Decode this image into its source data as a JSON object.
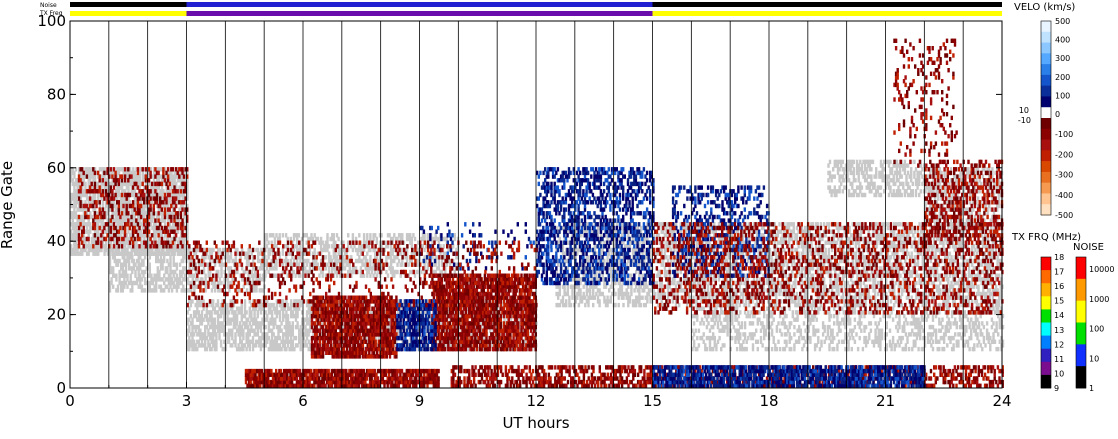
{
  "strips": {
    "noise_label": "Noise",
    "txfreq_label": "TX Freq"
  },
  "chart_data": {
    "type": "heatmap",
    "title": "",
    "xlabel": "UT hours",
    "ylabel": "Range Gate",
    "xlim": [
      0,
      24
    ],
    "ylim": [
      0,
      100
    ],
    "x_ticks": [
      "0",
      "3",
      "6",
      "9",
      "12",
      "15",
      "18",
      "21",
      "24"
    ],
    "y_ticks": [
      "0",
      "20",
      "40",
      "60",
      "80",
      "100"
    ],
    "hour_gridlines": [
      1,
      2,
      3,
      4,
      5,
      6,
      7,
      8,
      9,
      10,
      11,
      12,
      13,
      14,
      15,
      16,
      17,
      18,
      19,
      20,
      21,
      22,
      23
    ],
    "ground_scatter_color": "#c8c8c8",
    "noise_strip": {
      "segments": [
        {
          "from": 0,
          "to": 3,
          "color": "#000000"
        },
        {
          "from": 3,
          "to": 15,
          "color": "#2020d0"
        },
        {
          "from": 15,
          "to": 24,
          "color": "#000000"
        }
      ]
    },
    "txfreq_strip": {
      "segments": [
        {
          "from": 0,
          "to": 3,
          "color": "#ffff00"
        },
        {
          "from": 3,
          "to": 15,
          "color": "#6a0dad"
        },
        {
          "from": 15,
          "to": 24,
          "color": "#ffff00"
        }
      ]
    },
    "regions": [
      {
        "kind": "gs",
        "t": [
          0.0,
          3.0
        ],
        "g": [
          36,
          60
        ],
        "density": 0.75
      },
      {
        "kind": "gs",
        "t": [
          1.0,
          5.0
        ],
        "g": [
          26,
          38
        ],
        "density": 0.55
      },
      {
        "kind": "gs",
        "t": [
          3.0,
          12.0
        ],
        "g": [
          10,
          24
        ],
        "density": 0.6
      },
      {
        "kind": "gs",
        "t": [
          5.0,
          10.0
        ],
        "g": [
          30,
          42
        ],
        "density": 0.45
      },
      {
        "kind": "gs",
        "t": [
          12.5,
          24.0
        ],
        "g": [
          22,
          45
        ],
        "density": 0.5
      },
      {
        "kind": "gs",
        "t": [
          16.0,
          24.0
        ],
        "g": [
          10,
          22
        ],
        "density": 0.35
      },
      {
        "kind": "gs",
        "t": [
          19.5,
          22.0
        ],
        "g": [
          52,
          62
        ],
        "density": 0.5
      },
      {
        "kind": "gs",
        "t": [
          22.0,
          24.0
        ],
        "g": [
          44,
          60
        ],
        "density": 0.45
      },
      {
        "kind": "neg",
        "t": [
          0.2,
          3.0
        ],
        "g": [
          38,
          60
        ],
        "density": 0.3
      },
      {
        "kind": "neg",
        "t": [
          6.2,
          8.4
        ],
        "g": [
          8,
          25
        ],
        "density": 0.85
      },
      {
        "kind": "neg",
        "t": [
          9.3,
          12.0
        ],
        "g": [
          10,
          31
        ],
        "density": 0.8
      },
      {
        "kind": "pos",
        "t": [
          8.4,
          9.4
        ],
        "g": [
          10,
          24
        ],
        "density": 0.7
      },
      {
        "kind": "neg",
        "t": [
          4.5,
          9.5
        ],
        "g": [
          0,
          5
        ],
        "density": 0.85
      },
      {
        "kind": "neg",
        "t": [
          9.8,
          24.0
        ],
        "g": [
          0,
          6
        ],
        "density": 0.5
      },
      {
        "kind": "pos",
        "t": [
          15.0,
          22.0
        ],
        "g": [
          0,
          6
        ],
        "density": 0.75
      },
      {
        "kind": "pos",
        "t": [
          12.0,
          15.0
        ],
        "g": [
          28,
          60
        ],
        "density": 0.45
      },
      {
        "kind": "pos",
        "t": [
          15.5,
          18.0
        ],
        "g": [
          30,
          55
        ],
        "density": 0.3
      },
      {
        "kind": "neg",
        "t": [
          15.0,
          24.0
        ],
        "g": [
          20,
          45
        ],
        "density": 0.25
      },
      {
        "kind": "neg",
        "t": [
          22.0,
          24.0
        ],
        "g": [
          40,
          62
        ],
        "density": 0.35
      },
      {
        "kind": "neg",
        "t": [
          21.2,
          22.8
        ],
        "g": [
          60,
          95
        ],
        "density": 0.12
      },
      {
        "kind": "pos",
        "t": [
          9.0,
          12.5
        ],
        "g": [
          32,
          45
        ],
        "density": 0.12
      },
      {
        "kind": "neg",
        "t": [
          3.0,
          12.0
        ],
        "g": [
          22,
          40
        ],
        "density": 0.15
      }
    ],
    "velocity_colorbar": {
      "title": "VELO (km/s)",
      "labels": [
        "500",
        "400",
        "300",
        "200",
        "100",
        "0",
        "10",
        "-10",
        "-100",
        "-200",
        "-300",
        "-400",
        "-500"
      ],
      "colors_top_to_bottom": [
        "#e8f4ff",
        "#bfe2ff",
        "#8cc8ff",
        "#55a8ff",
        "#2a7fe8",
        "#1555cc",
        "#0a2f9a",
        "#00006e",
        "#ffffff",
        "#6e0000",
        "#8b0000",
        "#a81010",
        "#c02000",
        "#d84800",
        "#e87020",
        "#f59a50",
        "#ffc490",
        "#ffe0c0"
      ]
    },
    "txfreq_colorbar": {
      "title": "TX FRQ (MHz)",
      "labels": [
        "18",
        "17",
        "16",
        "15",
        "14",
        "13",
        "12",
        "11",
        "10",
        "9"
      ],
      "colors_top_to_bottom": [
        "#ff0000",
        "#ff6a00",
        "#ffb000",
        "#ffff00",
        "#00e000",
        "#00ffff",
        "#0080ff",
        "#3020c0",
        "#7b0d8f",
        "#000000"
      ]
    },
    "noise_colorbar": {
      "title": "NOISE",
      "labels": [
        "10000",
        "1000",
        "100",
        "10",
        "1"
      ],
      "colors_top_to_bottom": [
        "#ff0000",
        "#ff9900",
        "#ffff00",
        "#00e000",
        "#1030ff",
        "#000000"
      ]
    }
  }
}
